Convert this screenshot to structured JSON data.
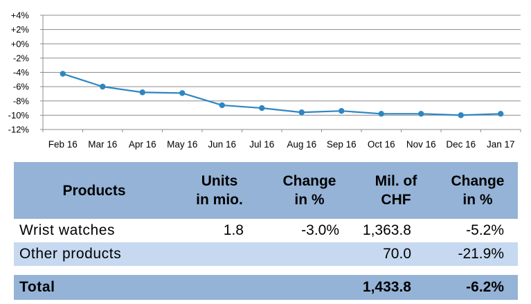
{
  "chart_data": {
    "type": "line",
    "categories": [
      "Feb 16",
      "Mar 16",
      "Apr 16",
      "May 16",
      "Jun 16",
      "Jul 16",
      "Aug 16",
      "Sep 16",
      "Oct 16",
      "Nov 16",
      "Dec 16",
      "Jan 17"
    ],
    "values": [
      -4.2,
      -6.0,
      -6.8,
      -6.9,
      -8.6,
      -9.0,
      -9.6,
      -9.4,
      -9.8,
      -9.8,
      -10.0,
      -9.8
    ],
    "y_ticks": [
      "+4%",
      "+2%",
      "+0%",
      "-2%",
      "-4%",
      "-6%",
      "-8%",
      "-10%",
      "-12%"
    ],
    "ylim": [
      -12,
      4
    ],
    "grid": true,
    "colors": {
      "line": "#2e86c1",
      "grid": "#8c8c8c"
    }
  },
  "table": {
    "headers": [
      [
        "Products"
      ],
      [
        "Units",
        "in mio."
      ],
      [
        "Change",
        "in %"
      ],
      [
        "Mil. of",
        "CHF"
      ],
      [
        "Change",
        "in %"
      ]
    ],
    "rows": [
      [
        "Wrist watches",
        "1.8",
        "-3.0%",
        "1,363.8",
        "-5.2%"
      ],
      [
        "Other products",
        "",
        "",
        "70.0",
        "-21.9%"
      ]
    ],
    "total": [
      "Total",
      "",
      "",
      "1,433.8",
      "-6.2%"
    ],
    "colors": {
      "header": "#95b3d7",
      "alt_row": "#c6d9f1",
      "total": "#95b3d7"
    }
  }
}
